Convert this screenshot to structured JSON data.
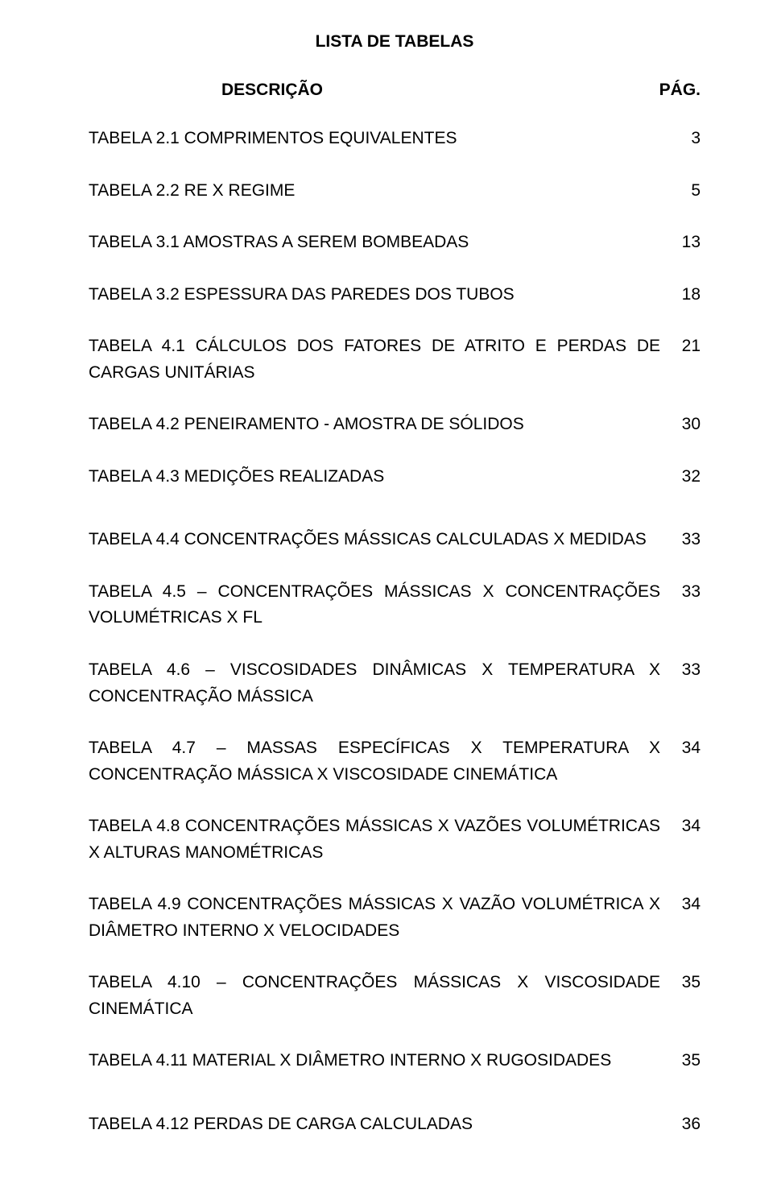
{
  "title": "LISTA DE TABELAS",
  "header": {
    "desc": "DESCRIÇÃO",
    "page": "PÁG."
  },
  "entries": [
    {
      "desc": "TABELA 2.1 COMPRIMENTOS EQUIVALENTES",
      "page": "3"
    },
    {
      "desc": "TABELA 2.2 RE X REGIME",
      "page": "5"
    },
    {
      "desc": "TABELA 3.1 AMOSTRAS A SEREM BOMBEADAS",
      "page": "13"
    },
    {
      "desc": "TABELA 3.2 ESPESSURA DAS PAREDES DOS TUBOS",
      "page": "18"
    },
    {
      "desc": "TABELA 4.1 CÁLCULOS DOS FATORES DE ATRITO E PERDAS DE CARGAS UNITÁRIAS",
      "page": "21"
    },
    {
      "desc": "TABELA 4.2 PENEIRAMENTO - AMOSTRA DE SÓLIDOS",
      "page": "30"
    },
    {
      "desc": "TABELA 4.3 MEDIÇÕES REALIZADAS",
      "page": "32"
    },
    {
      "desc": "TABELA 4.4 CONCENTRAÇÕES MÁSSICAS CALCULADAS X MEDIDAS",
      "page": "33"
    },
    {
      "desc": "TABELA 4.5 – CONCENTRAÇÕES MÁSSICAS X CONCENTRAÇÕES VOLUMÉTRICAS X FL",
      "page": "33"
    },
    {
      "desc": "TABELA 4.6 – VISCOSIDADES DINÂMICAS X TEMPERATURA X CONCENTRAÇÃO MÁSSICA",
      "page": "33"
    },
    {
      "desc": "TABELA 4.7 – MASSAS ESPECÍFICAS X TEMPERATURA X CONCENTRAÇÃO MÁSSICA X VISCOSIDADE CINEMÁTICA",
      "page": "34"
    },
    {
      "desc": "TABELA 4.8 CONCENTRAÇÕES MÁSSICAS X VAZÕES VOLUMÉTRICAS X ALTURAS MANOMÉTRICAS",
      "page": "34"
    },
    {
      "desc": "TABELA 4.9 CONCENTRAÇÕES MÁSSICAS X VAZÃO VOLUMÉTRICA X DIÂMETRO INTERNO X VELOCIDADES",
      "page": "34"
    },
    {
      "desc": "TABELA 4.10 – CONCENTRAÇÕES MÁSSICAS X VISCOSIDADE CINEMÁTICA",
      "page": "35"
    },
    {
      "desc": "TABELA 4.11 MATERIAL X DIÂMETRO INTERNO X RUGOSIDADES",
      "page": "35"
    },
    {
      "desc": "TABELA 4.12 PERDAS DE CARGA CALCULADAS",
      "page": "36"
    }
  ]
}
